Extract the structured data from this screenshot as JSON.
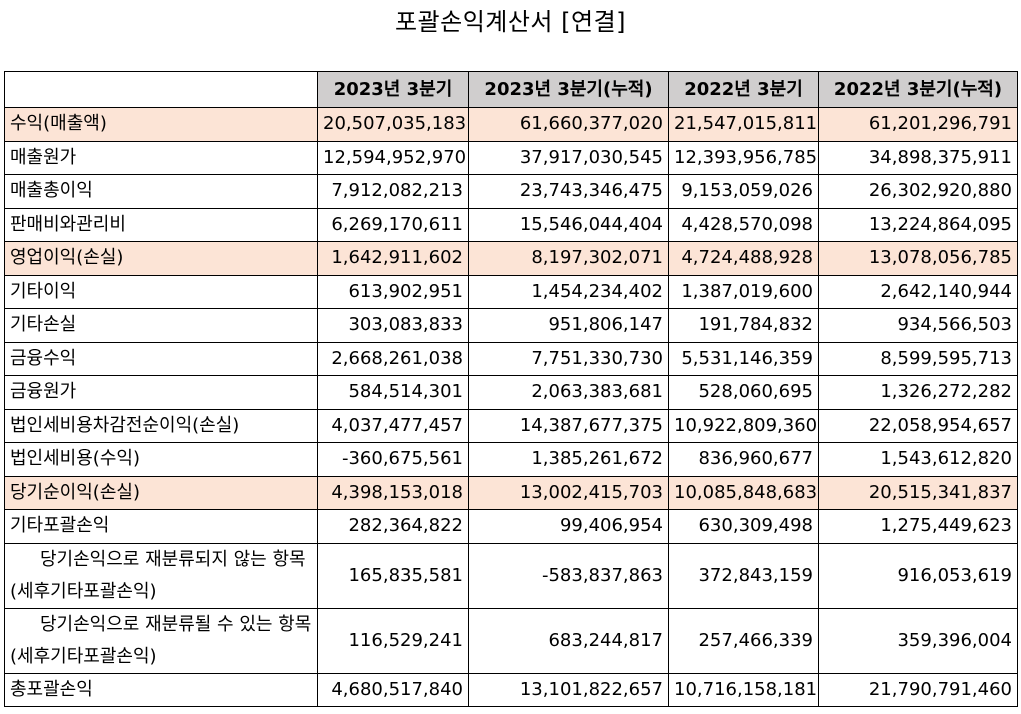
{
  "title": "포괄손익계산서 [연결]",
  "columns": [
    "",
    "2023년 3분기",
    "2023년 3분기(누적)",
    "2022년 3분기",
    "2022년 3분기(누적)"
  ],
  "rows": [
    {
      "label": "수익(매출액)",
      "values": [
        "20,507,035,183",
        "61,660,377,020",
        "21,547,015,811",
        "61,201,296,791"
      ]
    },
    {
      "label": "매출원가",
      "values": [
        "12,594,952,970",
        "37,917,030,545",
        "12,393,956,785",
        "34,898,375,911"
      ]
    },
    {
      "label": "매출총이익",
      "values": [
        "7,912,082,213",
        "23,743,346,475",
        "9,153,059,026",
        "26,302,920,880"
      ]
    },
    {
      "label": "판매비와관리비",
      "values": [
        "6,269,170,611",
        "15,546,044,404",
        "4,428,570,098",
        "13,224,864,095"
      ]
    },
    {
      "label": "영업이익(손실)",
      "values": [
        "1,642,911,602",
        "8,197,302,071",
        "4,724,488,928",
        "13,078,056,785"
      ]
    },
    {
      "label": "기타이익",
      "values": [
        "613,902,951",
        "1,454,234,402",
        "1,387,019,600",
        "2,642,140,944"
      ]
    },
    {
      "label": "기타손실",
      "values": [
        "303,083,833",
        "951,806,147",
        "191,784,832",
        "934,566,503"
      ]
    },
    {
      "label": "금융수익",
      "values": [
        "2,668,261,038",
        "7,751,330,730",
        "5,531,146,359",
        "8,599,595,713"
      ]
    },
    {
      "label": "금융원가",
      "values": [
        "584,514,301",
        "2,063,383,681",
        "528,060,695",
        "1,326,272,282"
      ]
    },
    {
      "label": "법인세비용차감전순이익(손실)",
      "values": [
        "4,037,477,457",
        "14,387,677,375",
        "10,922,809,360",
        "22,058,954,657"
      ]
    },
    {
      "label": "법인세비용(수익)",
      "values": [
        "-360,675,561",
        "1,385,261,672",
        "836,960,677",
        "1,543,612,820"
      ]
    },
    {
      "label": "당기순이익(손실)",
      "values": [
        "4,398,153,018",
        "13,002,415,703",
        "10,085,848,683",
        "20,515,341,837"
      ]
    },
    {
      "label": "기타포괄손익",
      "values": [
        "282,364,822",
        "99,406,954",
        "630,309,498",
        "1,275,449,623"
      ]
    },
    {
      "label": "당기손익으로 재분류되지 않는 항목(세후기타포괄손익)",
      "values": [
        "165,835,581",
        "-583,837,863",
        "372,843,159",
        "916,053,619"
      ]
    },
    {
      "label": "당기손익으로 재분류될 수 있는 항목(세후기타포괄손익)",
      "values": [
        "116,529,241",
        "683,244,817",
        "257,466,339",
        "359,396,004"
      ]
    },
    {
      "label": "총포괄손익",
      "values": [
        "4,680,517,840",
        "13,101,822,657",
        "10,716,158,181",
        "21,790,791,460"
      ]
    }
  ]
}
